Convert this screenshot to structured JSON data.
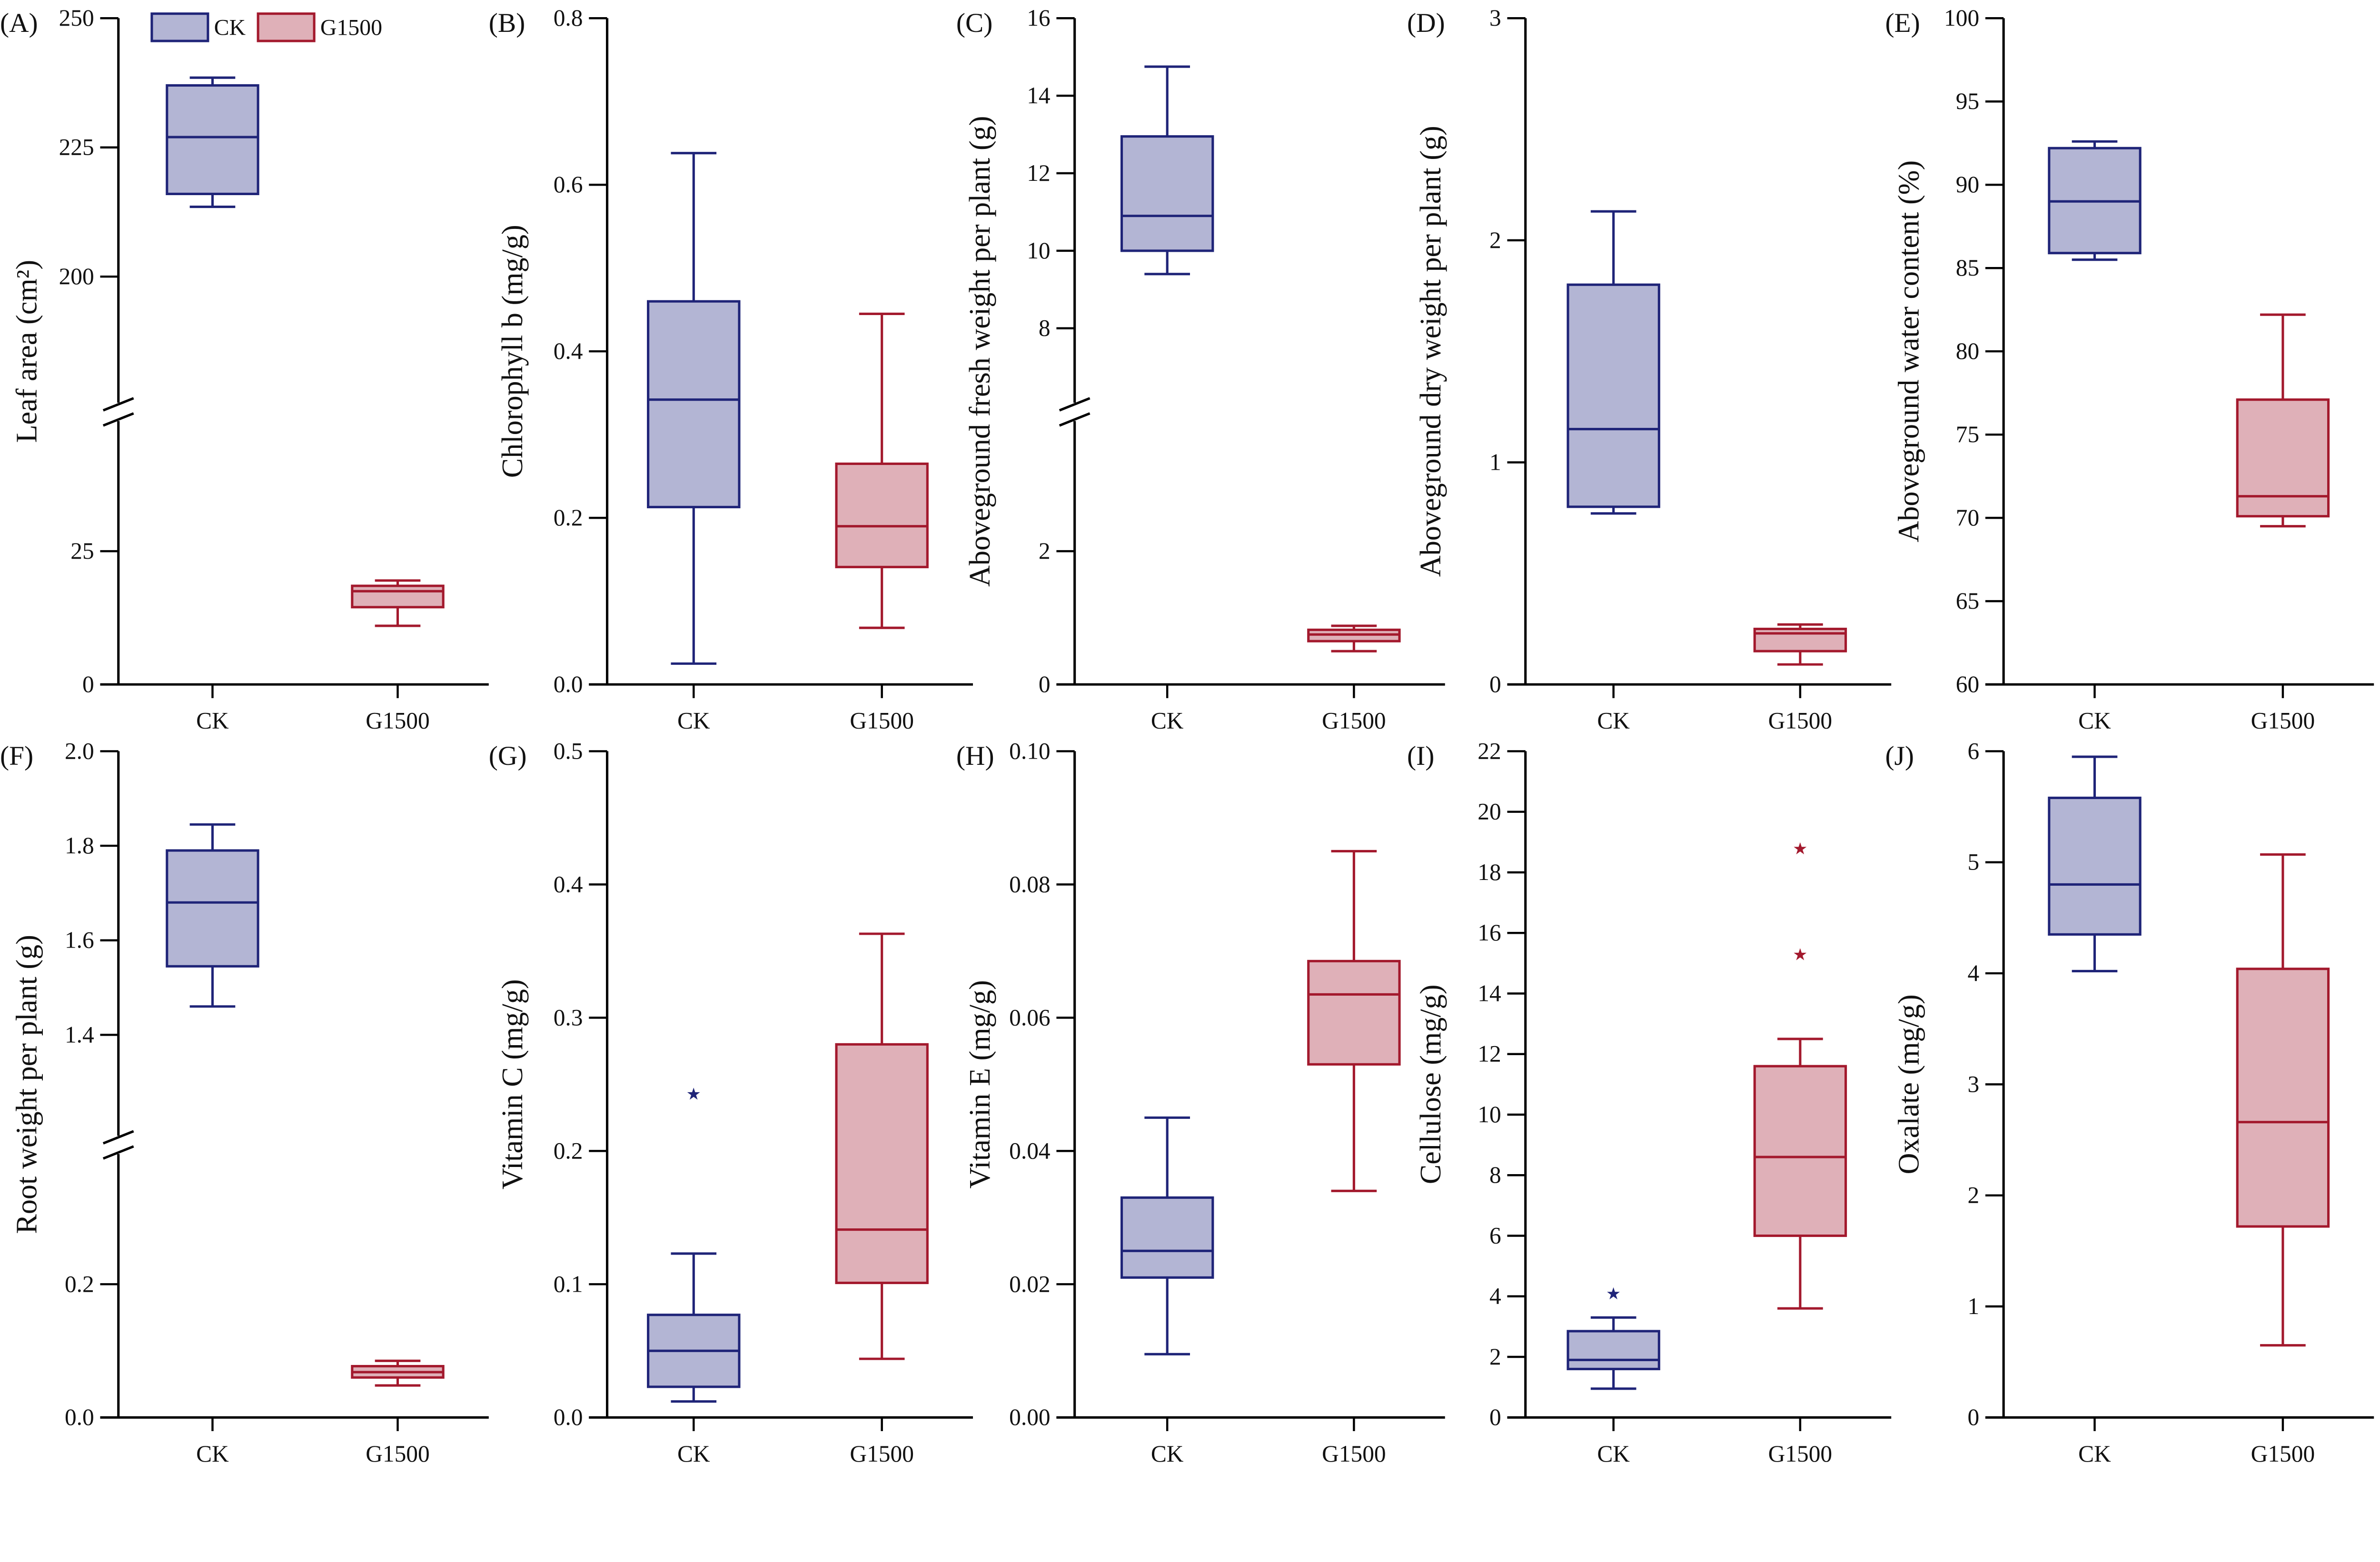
{
  "legend": [
    {
      "label": "CK",
      "fill": "#b3b5d4",
      "stroke": "#1f2478"
    },
    {
      "label": "G1500",
      "fill": "#dfb0b8",
      "stroke": "#a3192d"
    }
  ],
  "chart_data": [
    {
      "type": "box",
      "panel": "(A)",
      "ylabel": "Leaf area (cm²)",
      "categories": [
        "CK",
        "G1500"
      ],
      "y_ticks": [
        "0",
        "25",
        "200",
        "225",
        "250"
      ],
      "axis_break": [
        50,
        175
      ],
      "ylim": [
        0,
        250
      ],
      "series": [
        {
          "name": "CK",
          "min": 213.5,
          "q1": 216,
          "median": 227,
          "q3": 237,
          "max": 238.5,
          "outliers": []
        },
        {
          "name": "G1500",
          "min": 11,
          "q1": 14.5,
          "median": 17.5,
          "q3": 18.5,
          "max": 19.5,
          "outliers": []
        }
      ]
    },
    {
      "type": "box",
      "panel": "(B)",
      "ylabel": "Chlorophyll b (mg/g)",
      "categories": [
        "CK",
        "G1500"
      ],
      "y_ticks": [
        "0.0",
        "0.2",
        "0.4",
        "0.6",
        "0.8"
      ],
      "axis_break": null,
      "ylim": [
        0,
        0.8
      ],
      "series": [
        {
          "name": "CK",
          "min": 0.025,
          "q1": 0.213,
          "median": 0.342,
          "q3": 0.46,
          "max": 0.638,
          "outliers": []
        },
        {
          "name": "G1500",
          "min": 0.068,
          "q1": 0.141,
          "median": 0.19,
          "q3": 0.265,
          "max": 0.445,
          "outliers": []
        }
      ]
    },
    {
      "type": "box",
      "panel": "(C)",
      "ylabel": "Aboveground fresh weight per plant (g)",
      "categories": [
        "CK",
        "G1500"
      ],
      "y_ticks": [
        "0",
        "2",
        "8",
        "10",
        "12",
        "14",
        "16"
      ],
      "axis_break": [
        4,
        6
      ],
      "ylim": [
        0,
        16
      ],
      "series": [
        {
          "name": "CK",
          "min": 9.4,
          "q1": 10.0,
          "median": 10.9,
          "q3": 12.95,
          "max": 14.75,
          "outliers": []
        },
        {
          "name": "G1500",
          "min": 0.5,
          "q1": 0.65,
          "median": 0.75,
          "q3": 0.82,
          "max": 0.88,
          "outliers": []
        }
      ]
    },
    {
      "type": "box",
      "panel": "(D)",
      "ylabel": "Aboveground dry weight per plant (g)",
      "categories": [
        "CK",
        "G1500"
      ],
      "y_ticks": [
        "0",
        "1",
        "2",
        "3"
      ],
      "axis_break": null,
      "ylim": [
        0,
        3
      ],
      "series": [
        {
          "name": "CK",
          "min": 0.77,
          "q1": 0.8,
          "median": 1.15,
          "q3": 1.8,
          "max": 2.13,
          "outliers": []
        },
        {
          "name": "G1500",
          "min": 0.09,
          "q1": 0.15,
          "median": 0.23,
          "q3": 0.25,
          "max": 0.27,
          "outliers": []
        }
      ]
    },
    {
      "type": "box",
      "panel": "(E)",
      "ylabel": "Aboveground water content (%)",
      "categories": [
        "CK",
        "G1500"
      ],
      "y_ticks": [
        "60",
        "65",
        "70",
        "75",
        "80",
        "85",
        "90",
        "95",
        "100"
      ],
      "axis_break": null,
      "ylim": [
        60,
        100
      ],
      "series": [
        {
          "name": "CK",
          "min": 85.5,
          "q1": 85.9,
          "median": 89,
          "q3": 92.2,
          "max": 92.6,
          "outliers": []
        },
        {
          "name": "G1500",
          "min": 69.5,
          "q1": 70.1,
          "median": 71.3,
          "q3": 77.1,
          "max": 82.2,
          "outliers": []
        }
      ]
    },
    {
      "type": "box",
      "panel": "(F)",
      "ylabel": "Root weight per plant (g)",
      "categories": [
        "CK",
        "G1500"
      ],
      "y_ticks": [
        "0.0",
        "0.2",
        "1.4",
        "1.6",
        "1.8",
        "2.0"
      ],
      "axis_break": [
        0.4,
        1.18
      ],
      "ylim": [
        0,
        2.0
      ],
      "series": [
        {
          "name": "CK",
          "min": 1.46,
          "q1": 1.545,
          "median": 1.68,
          "q3": 1.79,
          "max": 1.845,
          "outliers": []
        },
        {
          "name": "G1500",
          "min": 0.048,
          "q1": 0.06,
          "median": 0.068,
          "q3": 0.077,
          "max": 0.085,
          "outliers": []
        }
      ]
    },
    {
      "type": "box",
      "panel": "(G)",
      "ylabel": "Vitamin C (mg/g)",
      "categories": [
        "CK",
        "G1500"
      ],
      "y_ticks": [
        "0.0",
        "0.1",
        "0.2",
        "0.3",
        "0.4",
        "0.5"
      ],
      "axis_break": null,
      "ylim": [
        0,
        0.5
      ],
      "series": [
        {
          "name": "CK",
          "min": 0.012,
          "q1": 0.023,
          "median": 0.05,
          "q3": 0.077,
          "max": 0.123,
          "outliers": [
            0.243
          ]
        },
        {
          "name": "G1500",
          "min": 0.044,
          "q1": 0.101,
          "median": 0.141,
          "q3": 0.28,
          "max": 0.363,
          "outliers": []
        }
      ]
    },
    {
      "type": "box",
      "panel": "(H)",
      "ylabel": "Vitamin E (mg/g)",
      "categories": [
        "CK",
        "G1500"
      ],
      "y_ticks": [
        "0.00",
        "0.02",
        "0.04",
        "0.06",
        "0.08",
        "0.10"
      ],
      "axis_break": null,
      "ylim": [
        0,
        0.1
      ],
      "series": [
        {
          "name": "CK",
          "min": 0.0095,
          "q1": 0.021,
          "median": 0.025,
          "q3": 0.033,
          "max": 0.045,
          "outliers": []
        },
        {
          "name": "G1500",
          "min": 0.034,
          "q1": 0.053,
          "median": 0.0635,
          "q3": 0.0685,
          "max": 0.085,
          "outliers": []
        }
      ]
    },
    {
      "type": "box",
      "panel": "(I)",
      "ylabel": "Cellulose (mg/g)",
      "categories": [
        "CK",
        "G1500"
      ],
      "y_ticks": [
        "0",
        "2",
        "4",
        "6",
        "8",
        "10",
        "12",
        "14",
        "16",
        "18",
        "20",
        "22"
      ],
      "axis_break": null,
      "ylim": [
        0,
        22
      ],
      "series": [
        {
          "name": "CK",
          "min": 0.95,
          "q1": 1.6,
          "median": 1.9,
          "q3": 2.85,
          "max": 3.3,
          "outliers": [
            4.1
          ]
        },
        {
          "name": "G1500",
          "min": 3.6,
          "q1": 6.0,
          "median": 8.6,
          "q3": 11.6,
          "max": 12.5,
          "outliers": [
            15.3,
            18.8
          ]
        }
      ]
    },
    {
      "type": "box",
      "panel": "(J)",
      "ylabel": "Oxalate (mg/g)",
      "categories": [
        "CK",
        "G1500"
      ],
      "y_ticks": [
        "0",
        "1",
        "2",
        "3",
        "4",
        "5",
        "6"
      ],
      "axis_break": null,
      "ylim": [
        0,
        6
      ],
      "series": [
        {
          "name": "CK",
          "min": 4.02,
          "q1": 4.35,
          "median": 4.8,
          "q3": 5.58,
          "max": 5.95,
          "outliers": []
        },
        {
          "name": "G1500",
          "min": 0.65,
          "q1": 1.72,
          "median": 2.66,
          "q3": 4.04,
          "max": 5.07,
          "outliers": []
        }
      ]
    }
  ]
}
